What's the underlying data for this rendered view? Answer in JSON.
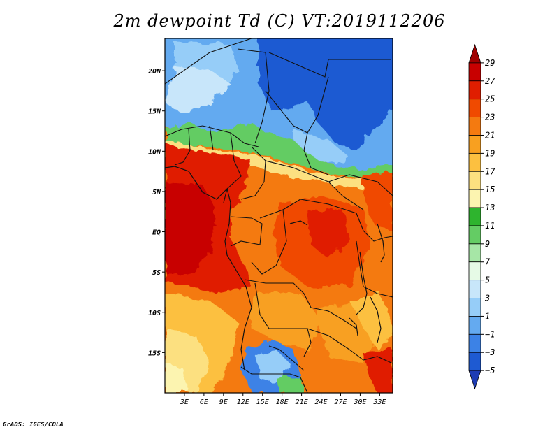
{
  "title": "2m dewpoint Td (C) VT:2019112206",
  "credit": "GrADS: IGES/COLA",
  "map": {
    "lon_labels": [
      "3E",
      "6E",
      "9E",
      "12E",
      "15E",
      "18E",
      "21E",
      "24E",
      "27E",
      "30E",
      "33E"
    ],
    "lat_labels": [
      "20N",
      "15N",
      "10N",
      "5N",
      "EQ",
      "5S",
      "10S",
      "15S"
    ],
    "lon_range": [
      0,
      35
    ],
    "lat_range": [
      -20,
      24
    ]
  },
  "colorbar": {
    "labels": [
      "29",
      "27",
      "25",
      "23",
      "21",
      "19",
      "17",
      "15",
      "13",
      "11",
      "9",
      "7",
      "5",
      "3",
      "1",
      "−1",
      "−3",
      "−5"
    ],
    "colors": [
      "#a00000",
      "#c80000",
      "#e01e00",
      "#f04a00",
      "#f47a10",
      "#f8a020",
      "#fcc040",
      "#fce080",
      "#fcf4b0",
      "#2eb42e",
      "#64cc64",
      "#a6e6a6",
      "#e6fae6",
      "#c8e6fa",
      "#96cdf8",
      "#64aaf0",
      "#3c82e6",
      "#1e5ad2",
      "#1e3cb4"
    ]
  }
}
